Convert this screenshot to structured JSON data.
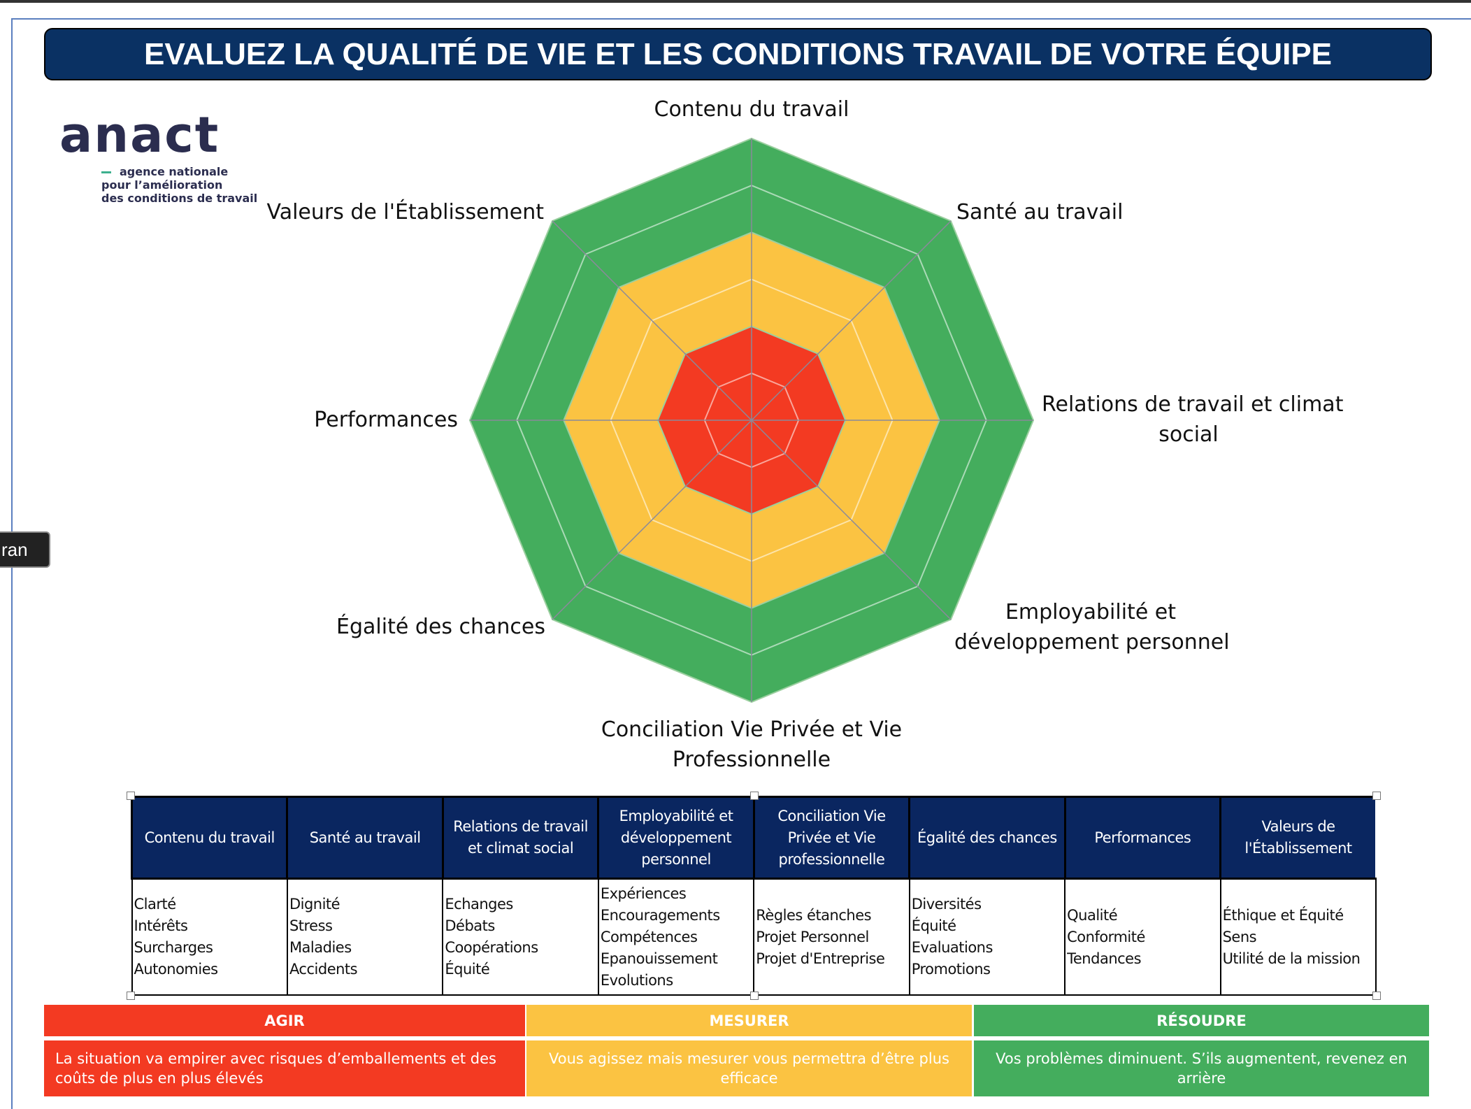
{
  "title": "EVALUEZ LA QUALITÉ DE VIE ET LES CONDITIONS TRAVAIL DE VOTRE ÉQUIPE",
  "logo": {
    "word": "anact",
    "line1": "agence nationale",
    "line2": "pour l’amélioration",
    "line3": "des conditions de travail"
  },
  "side_button": "ran",
  "radar": {
    "axes": [
      "Contenu du travail",
      "Santé au travail",
      "Relations de travail et climat social",
      "Employabilité et développement personnel",
      "Conciliation Vie Privée et Vie Professionnelle",
      "Égalité des chances",
      "Performances",
      "Valeurs de l'Établissement"
    ],
    "zones": [
      {
        "name": "red",
        "color": "#f33a22"
      },
      {
        "name": "yellow",
        "color": "#fbc342"
      },
      {
        "name": "green",
        "color": "#44ad5d"
      }
    ]
  },
  "labels": {
    "l0": "Contenu du travail",
    "l1": "Santé au travail",
    "l2a": "Relations de travail et climat",
    "l2b": "social",
    "l3a": "Employabilité et",
    "l3b": "développement personnel",
    "l4a": "Conciliation Vie Privée et Vie",
    "l4b": "Professionnelle",
    "l5": "Égalité des chances",
    "l6": "Performances",
    "l7": "Valeurs de l'Établissement"
  },
  "table": {
    "headers": [
      "Contenu du travail",
      "Santé au travail",
      "Relations de travail et climat social",
      "Employabilité et développement personnel",
      "Conciliation Vie Privée et Vie professionnelle",
      "Égalité des chances",
      "Performances",
      "Valeurs de l'Établissement"
    ],
    "cells": [
      [
        "Clarté",
        "Intérêts",
        "Surcharges",
        "Autonomies"
      ],
      [
        "Dignité",
        "Stress",
        "Maladies",
        "Accidents"
      ],
      [
        "Echanges",
        "Débats",
        "Coopérations",
        "Équité"
      ],
      [
        "Expériences",
        "Encouragements",
        "Compétences",
        "Epanouissement",
        "Evolutions"
      ],
      [
        "Règles étanches",
        "Projet Personnel",
        "Projet d'Entreprise"
      ],
      [
        "Diversités",
        "Équité",
        "Evaluations",
        "Promotions"
      ],
      [
        "Qualité",
        "Conformité",
        "Tendances"
      ],
      [
        "Éthique et Équité",
        "Sens",
        "Utilité de la mission"
      ]
    ]
  },
  "legend": {
    "agir": "AGIR",
    "mesurer": "MESURER",
    "resoudre": "RÉSOUDRE",
    "agir_desc": "La situation va empirer avec risques d’emballements et des coûts de plus en plus élevés",
    "mesurer_desc": "Vous agissez mais mesurer vous permettra d’être plus efficace",
    "resoudre_desc": "Vos problèmes diminuent. S’ils augmentent, revenez en arrière"
  }
}
